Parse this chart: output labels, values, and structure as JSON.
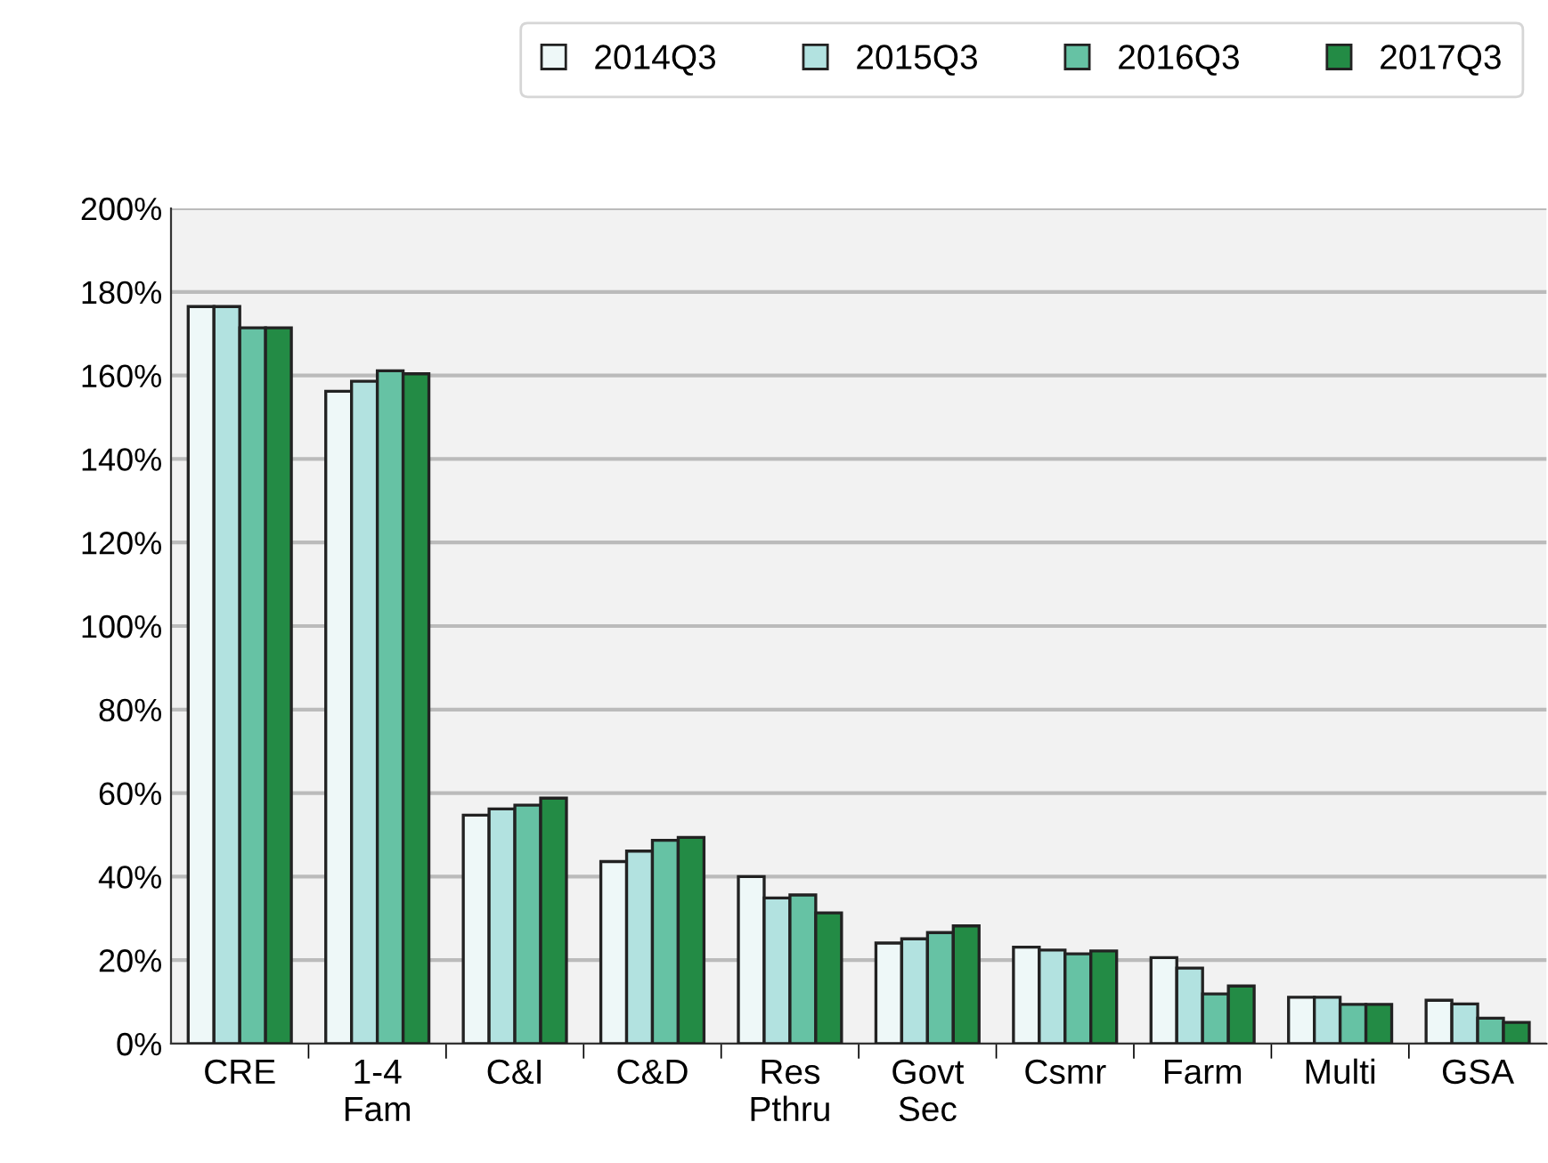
{
  "chart_data": {
    "type": "bar",
    "categories": [
      "CRE",
      "1-4\nFam",
      "C&I",
      "C&D",
      "Res\nPthru",
      "Govt\nSec",
      "Csmr",
      "Farm",
      "Multi",
      "GSA"
    ],
    "series": [
      {
        "name": "2014Q3",
        "color": "#eef8f8",
        "values": [
          176.5,
          156.2,
          54.7,
          43.6,
          40.0,
          24.1,
          23.1,
          20.6,
          11.1,
          10.4
        ]
      },
      {
        "name": "2015Q3",
        "color": "#b2e2e0",
        "values": [
          176.5,
          158.6,
          56.2,
          46.1,
          34.9,
          25.1,
          22.4,
          18.1,
          11.1,
          9.5
        ]
      },
      {
        "name": "2016Q3",
        "color": "#66c2a4",
        "values": [
          171.4,
          161.1,
          57.1,
          48.7,
          35.6,
          26.6,
          21.5,
          11.9,
          9.4,
          6.1
        ]
      },
      {
        "name": "2017Q3",
        "color": "#238b45",
        "values": [
          171.4,
          160.4,
          58.8,
          49.4,
          31.3,
          28.2,
          22.2,
          13.8,
          9.4,
          5.1
        ]
      }
    ],
    "ylim": [
      0,
      200
    ],
    "yticks": [
      {
        "value": 0,
        "label": "0%"
      },
      {
        "value": 20,
        "label": "20%"
      },
      {
        "value": 40,
        "label": "40%"
      },
      {
        "value": 60,
        "label": "60%"
      },
      {
        "value": 80,
        "label": "80%"
      },
      {
        "value": 100,
        "label": "100%"
      },
      {
        "value": 120,
        "label": "120%"
      },
      {
        "value": 140,
        "label": "140%"
      },
      {
        "value": 160,
        "label": "160%"
      },
      {
        "value": 180,
        "label": "180%"
      },
      {
        "value": 200,
        "label": "200%"
      }
    ],
    "grid": "y",
    "legend": "top right"
  }
}
